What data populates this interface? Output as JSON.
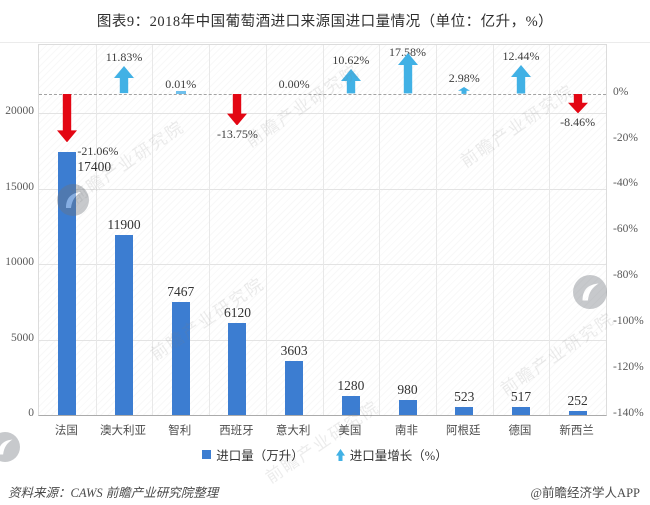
{
  "title": "图表9：2018年中国葡萄酒进口来源国进口量情况（单位：亿升，%）",
  "colors": {
    "bar": "#3c7dd1",
    "growth_up_arrow": "#41b1e5",
    "growth_down_arrow": "#e30613",
    "grid": "#e3e3e3",
    "zero_dashed_line": "#a3a3a3",
    "tick_text": "#595959",
    "label_text": "#3d3d3d"
  },
  "chart_data": {
    "type": "bar",
    "title": "图表9：2018年中国葡萄酒进口来源国进口量情况（单位：亿升，%）",
    "categories": [
      "法国",
      "澳大利亚",
      "智利",
      "西班牙",
      "意大利",
      "美国",
      "南非",
      "阿根廷",
      "德国",
      "新西兰"
    ],
    "series": [
      {
        "name": "进口量（万升）",
        "type": "bar",
        "axis": "left",
        "values": [
          17400,
          11900,
          7467,
          6120,
          3603,
          1280,
          980,
          523,
          517,
          252
        ],
        "labels": [
          "17400",
          "11900",
          "7467",
          "6120",
          "3603",
          "1280",
          "980",
          "523",
          "517",
          "252"
        ]
      },
      {
        "name": "进口量增长（%）",
        "type": "arrow",
        "axis": "right",
        "values": [
          -21.06,
          11.83,
          0.01,
          -13.75,
          0.0,
          10.62,
          17.58,
          2.98,
          12.44,
          -8.46
        ],
        "labels": [
          "-21.06%",
          "11.83%",
          "0.01%",
          "-13.75%",
          "0.00%",
          "10.62%",
          "17.58%",
          "2.98%",
          "12.44%",
          "-8.46%"
        ]
      }
    ],
    "left_axis": {
      "ticks": [
        0,
        5000,
        10000,
        15000,
        20000
      ],
      "tick_labels": [
        "0",
        "5000",
        "10000",
        "15000",
        "20000"
      ],
      "range": [
        0,
        24500
      ]
    },
    "right_axis": {
      "ticks": [
        0,
        -20,
        -40,
        -60,
        -80,
        -100,
        -120,
        -140
      ],
      "tick_labels": [
        "0%",
        "-20%",
        "-40%",
        "-60%",
        "-80%",
        "-100%",
        "-120%",
        "-140%"
      ],
      "range": [
        -140,
        10
      ]
    },
    "grid": true,
    "legend_position": "bottom"
  },
  "legend": {
    "items": [
      {
        "label": "进口量（万升）",
        "marker": "square"
      },
      {
        "label": "进口量增长（%）",
        "marker": "arrow-up"
      }
    ]
  },
  "footer": {
    "source": "资料来源：CAWS  前瞻产业研究院整理",
    "credit": "@前瞻经济学人APP"
  },
  "watermark": {
    "text": "前瞻产业研究院"
  }
}
